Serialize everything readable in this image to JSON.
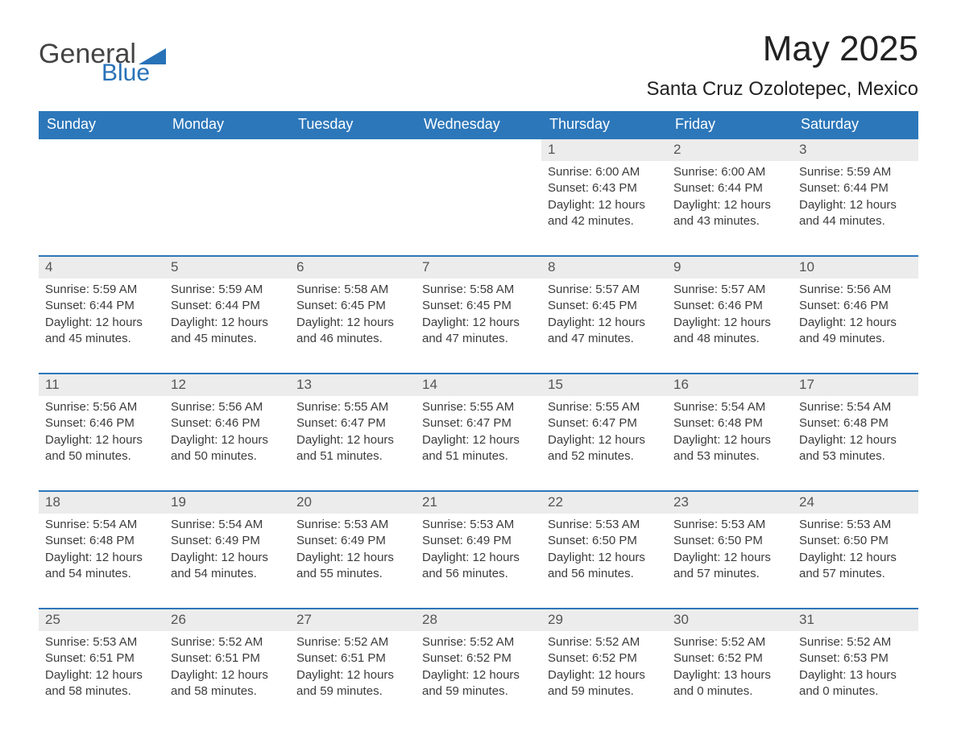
{
  "logo": {
    "word1": "General",
    "word2": "Blue",
    "triangle_color": "#2872b8"
  },
  "title": "May 2025",
  "location": "Santa Cruz Ozolotepec, Mexico",
  "colors": {
    "header_bg": "#2c77ba",
    "header_text": "#ffffff",
    "daynum_bg": "#ececec",
    "rule": "#2c77ba",
    "body_text": "#3c3c3c"
  },
  "day_headers": [
    "Sunday",
    "Monday",
    "Tuesday",
    "Wednesday",
    "Thursday",
    "Friday",
    "Saturday"
  ],
  "weeks": [
    [
      {
        "blank": true
      },
      {
        "blank": true
      },
      {
        "blank": true
      },
      {
        "blank": true
      },
      {
        "day": "1",
        "sunrise": "Sunrise: 6:00 AM",
        "sunset": "Sunset: 6:43 PM",
        "daylight1": "Daylight: 12 hours",
        "daylight2": "and 42 minutes."
      },
      {
        "day": "2",
        "sunrise": "Sunrise: 6:00 AM",
        "sunset": "Sunset: 6:44 PM",
        "daylight1": "Daylight: 12 hours",
        "daylight2": "and 43 minutes."
      },
      {
        "day": "3",
        "sunrise": "Sunrise: 5:59 AM",
        "sunset": "Sunset: 6:44 PM",
        "daylight1": "Daylight: 12 hours",
        "daylight2": "and 44 minutes."
      }
    ],
    [
      {
        "day": "4",
        "sunrise": "Sunrise: 5:59 AM",
        "sunset": "Sunset: 6:44 PM",
        "daylight1": "Daylight: 12 hours",
        "daylight2": "and 45 minutes."
      },
      {
        "day": "5",
        "sunrise": "Sunrise: 5:59 AM",
        "sunset": "Sunset: 6:44 PM",
        "daylight1": "Daylight: 12 hours",
        "daylight2": "and 45 minutes."
      },
      {
        "day": "6",
        "sunrise": "Sunrise: 5:58 AM",
        "sunset": "Sunset: 6:45 PM",
        "daylight1": "Daylight: 12 hours",
        "daylight2": "and 46 minutes."
      },
      {
        "day": "7",
        "sunrise": "Sunrise: 5:58 AM",
        "sunset": "Sunset: 6:45 PM",
        "daylight1": "Daylight: 12 hours",
        "daylight2": "and 47 minutes."
      },
      {
        "day": "8",
        "sunrise": "Sunrise: 5:57 AM",
        "sunset": "Sunset: 6:45 PM",
        "daylight1": "Daylight: 12 hours",
        "daylight2": "and 47 minutes."
      },
      {
        "day": "9",
        "sunrise": "Sunrise: 5:57 AM",
        "sunset": "Sunset: 6:46 PM",
        "daylight1": "Daylight: 12 hours",
        "daylight2": "and 48 minutes."
      },
      {
        "day": "10",
        "sunrise": "Sunrise: 5:56 AM",
        "sunset": "Sunset: 6:46 PM",
        "daylight1": "Daylight: 12 hours",
        "daylight2": "and 49 minutes."
      }
    ],
    [
      {
        "day": "11",
        "sunrise": "Sunrise: 5:56 AM",
        "sunset": "Sunset: 6:46 PM",
        "daylight1": "Daylight: 12 hours",
        "daylight2": "and 50 minutes."
      },
      {
        "day": "12",
        "sunrise": "Sunrise: 5:56 AM",
        "sunset": "Sunset: 6:46 PM",
        "daylight1": "Daylight: 12 hours",
        "daylight2": "and 50 minutes."
      },
      {
        "day": "13",
        "sunrise": "Sunrise: 5:55 AM",
        "sunset": "Sunset: 6:47 PM",
        "daylight1": "Daylight: 12 hours",
        "daylight2": "and 51 minutes."
      },
      {
        "day": "14",
        "sunrise": "Sunrise: 5:55 AM",
        "sunset": "Sunset: 6:47 PM",
        "daylight1": "Daylight: 12 hours",
        "daylight2": "and 51 minutes."
      },
      {
        "day": "15",
        "sunrise": "Sunrise: 5:55 AM",
        "sunset": "Sunset: 6:47 PM",
        "daylight1": "Daylight: 12 hours",
        "daylight2": "and 52 minutes."
      },
      {
        "day": "16",
        "sunrise": "Sunrise: 5:54 AM",
        "sunset": "Sunset: 6:48 PM",
        "daylight1": "Daylight: 12 hours",
        "daylight2": "and 53 minutes."
      },
      {
        "day": "17",
        "sunrise": "Sunrise: 5:54 AM",
        "sunset": "Sunset: 6:48 PM",
        "daylight1": "Daylight: 12 hours",
        "daylight2": "and 53 minutes."
      }
    ],
    [
      {
        "day": "18",
        "sunrise": "Sunrise: 5:54 AM",
        "sunset": "Sunset: 6:48 PM",
        "daylight1": "Daylight: 12 hours",
        "daylight2": "and 54 minutes."
      },
      {
        "day": "19",
        "sunrise": "Sunrise: 5:54 AM",
        "sunset": "Sunset: 6:49 PM",
        "daylight1": "Daylight: 12 hours",
        "daylight2": "and 54 minutes."
      },
      {
        "day": "20",
        "sunrise": "Sunrise: 5:53 AM",
        "sunset": "Sunset: 6:49 PM",
        "daylight1": "Daylight: 12 hours",
        "daylight2": "and 55 minutes."
      },
      {
        "day": "21",
        "sunrise": "Sunrise: 5:53 AM",
        "sunset": "Sunset: 6:49 PM",
        "daylight1": "Daylight: 12 hours",
        "daylight2": "and 56 minutes."
      },
      {
        "day": "22",
        "sunrise": "Sunrise: 5:53 AM",
        "sunset": "Sunset: 6:50 PM",
        "daylight1": "Daylight: 12 hours",
        "daylight2": "and 56 minutes."
      },
      {
        "day": "23",
        "sunrise": "Sunrise: 5:53 AM",
        "sunset": "Sunset: 6:50 PM",
        "daylight1": "Daylight: 12 hours",
        "daylight2": "and 57 minutes."
      },
      {
        "day": "24",
        "sunrise": "Sunrise: 5:53 AM",
        "sunset": "Sunset: 6:50 PM",
        "daylight1": "Daylight: 12 hours",
        "daylight2": "and 57 minutes."
      }
    ],
    [
      {
        "day": "25",
        "sunrise": "Sunrise: 5:53 AM",
        "sunset": "Sunset: 6:51 PM",
        "daylight1": "Daylight: 12 hours",
        "daylight2": "and 58 minutes."
      },
      {
        "day": "26",
        "sunrise": "Sunrise: 5:52 AM",
        "sunset": "Sunset: 6:51 PM",
        "daylight1": "Daylight: 12 hours",
        "daylight2": "and 58 minutes."
      },
      {
        "day": "27",
        "sunrise": "Sunrise: 5:52 AM",
        "sunset": "Sunset: 6:51 PM",
        "daylight1": "Daylight: 12 hours",
        "daylight2": "and 59 minutes."
      },
      {
        "day": "28",
        "sunrise": "Sunrise: 5:52 AM",
        "sunset": "Sunset: 6:52 PM",
        "daylight1": "Daylight: 12 hours",
        "daylight2": "and 59 minutes."
      },
      {
        "day": "29",
        "sunrise": "Sunrise: 5:52 AM",
        "sunset": "Sunset: 6:52 PM",
        "daylight1": "Daylight: 12 hours",
        "daylight2": "and 59 minutes."
      },
      {
        "day": "30",
        "sunrise": "Sunrise: 5:52 AM",
        "sunset": "Sunset: 6:52 PM",
        "daylight1": "Daylight: 13 hours",
        "daylight2": "and 0 minutes."
      },
      {
        "day": "31",
        "sunrise": "Sunrise: 5:52 AM",
        "sunset": "Sunset: 6:53 PM",
        "daylight1": "Daylight: 13 hours",
        "daylight2": "and 0 minutes."
      }
    ]
  ]
}
